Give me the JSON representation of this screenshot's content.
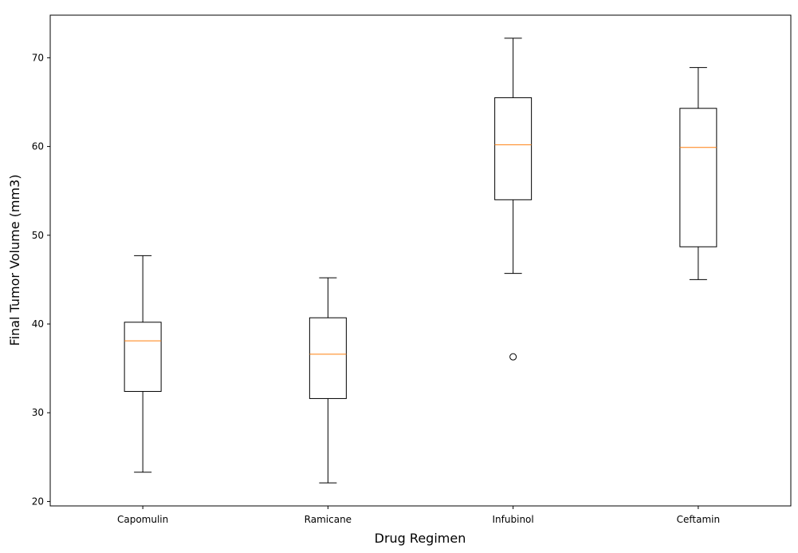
{
  "chart_data": {
    "type": "box",
    "title": "",
    "xlabel": "Drug Regimen",
    "ylabel": "Final Tumor Volume (mm3)",
    "ylim": [
      19.5,
      74.8
    ],
    "yticks": [
      20,
      30,
      40,
      50,
      60,
      70
    ],
    "grid": false,
    "categories": [
      "Capomulin",
      "Ramicane",
      "Infubinol",
      "Ceftamin"
    ],
    "boxes": [
      {
        "name": "Capomulin",
        "whisker_low": 23.3,
        "q1": 32.4,
        "median": 38.1,
        "q3": 40.2,
        "whisker_high": 47.7,
        "outliers": []
      },
      {
        "name": "Ramicane",
        "whisker_low": 22.1,
        "q1": 31.6,
        "median": 36.6,
        "q3": 40.7,
        "whisker_high": 45.2,
        "outliers": []
      },
      {
        "name": "Infubinol",
        "whisker_low": 45.7,
        "q1": 54.0,
        "median": 60.2,
        "q3": 65.5,
        "whisker_high": 72.2,
        "outliers": [
          36.3
        ]
      },
      {
        "name": "Ceftamin",
        "whisker_low": 45.0,
        "q1": 48.7,
        "median": 59.9,
        "q3": 64.3,
        "whisker_high": 68.9,
        "outliers": []
      }
    ],
    "colors": {
      "box": "#000000",
      "median": "#ff7f0e",
      "outlier": "#000000"
    }
  }
}
